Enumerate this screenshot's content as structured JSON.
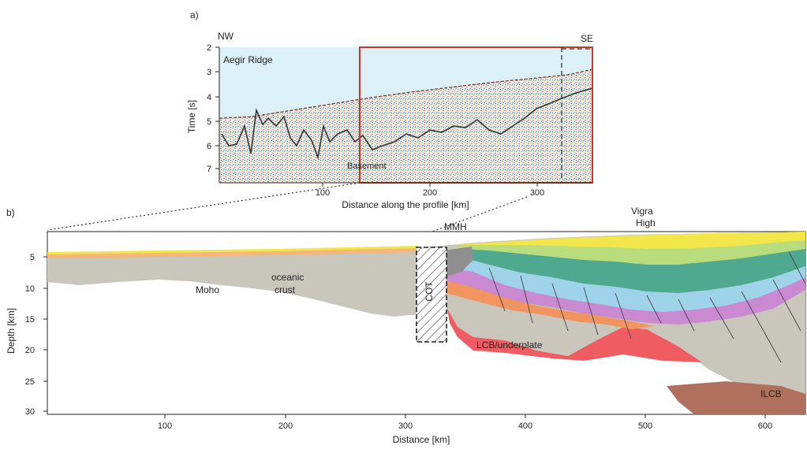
{
  "panel_a": {
    "label": "a)",
    "nw": "NW",
    "se": "SE",
    "ylabel": "Time [s]",
    "xlabel": "Distance along the profile [km]",
    "feature_label": "Aegir Ridge",
    "basement_label": "Basement",
    "y_ticks": [
      "2",
      "3",
      "4",
      "5",
      "6",
      "7"
    ],
    "x_ticks": [
      "100",
      "200",
      "300"
    ],
    "colors": {
      "water": "#dcf1f7",
      "highlight_box": "#c0392b",
      "basement_line": "#333333"
    }
  },
  "panel_b": {
    "label": "b)",
    "ylabel": "Depth [km]",
    "xlabel": "Distance [km]",
    "y_ticks": [
      "5",
      "10",
      "15",
      "20",
      "25",
      "30"
    ],
    "x_ticks": [
      "100",
      "200",
      "300",
      "400",
      "500",
      "600"
    ],
    "labels": {
      "moho": "Moho",
      "oceanic_crust_1": "oceanic",
      "oceanic_crust_2": "crust",
      "cot": "COT",
      "mmh": "MMH",
      "vigra_1": "Vigra",
      "vigra_2": "High",
      "lcb": "LCB/underplate",
      "ilcb": "ILCB"
    },
    "colors": {
      "crust": "#c9c6bc",
      "mantle": "#ffffff",
      "lcb": "#ef5d62",
      "ilcb": "#b0705e",
      "sed_yellow": "#f2e64a",
      "sed_orange": "#f6b87a",
      "sed_green": "#77c18f",
      "sed_lightgreen": "#b9dd7c",
      "sed_teal": "#4fa98f",
      "sed_blue": "#9fd3ea",
      "sed_purple": "#c98ad2",
      "sed_salmon": "#f2945f"
    }
  }
}
